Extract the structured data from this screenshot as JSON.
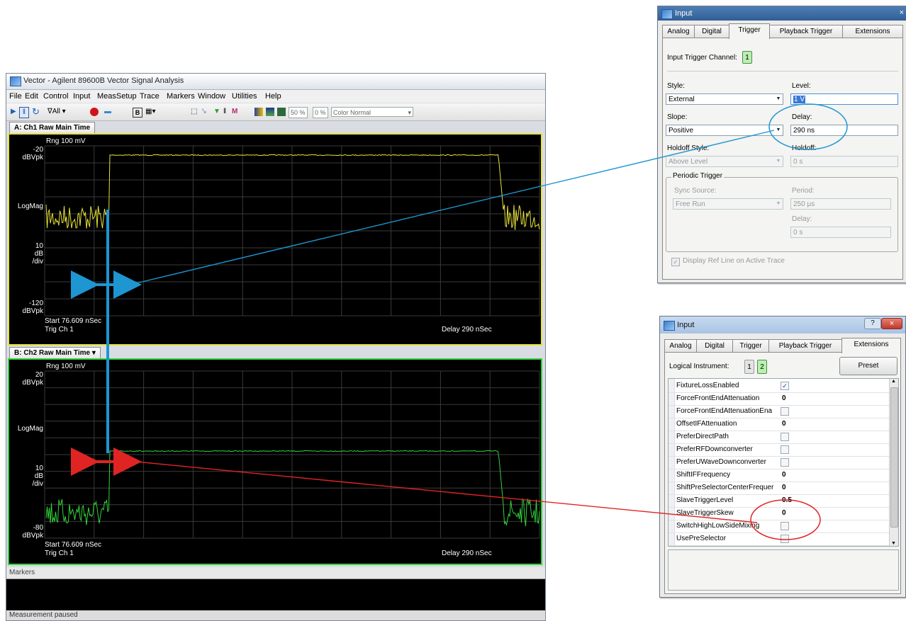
{
  "vsa": {
    "title": "Vector - Agilent 89600B Vector Signal Analysis",
    "menu": [
      "File",
      "Edit",
      "Control",
      "Input",
      "MeasSetup",
      "Trace",
      "Markers",
      "Window",
      "Utilities",
      "Help"
    ],
    "toolbar": {
      "all_label": "All",
      "zoom1": "50 %",
      "zoom2": "0 %",
      "color_mode": "Color Normal"
    },
    "trace_a": {
      "tab": "A: Ch1 Raw Main Time",
      "range": "Rng 100 mV",
      "top_value": "-20",
      "top_unit": "dBVpk",
      "logmag": "LogMag",
      "scale_num": "10",
      "scale_unit": "dB",
      "scale_div": "/div",
      "bottom_value": "-120",
      "bottom_unit": "dBVpk",
      "start": "Start 76.609 nSec",
      "trig": "Trig Ch 1",
      "delay": "Delay 290 nSec",
      "color": "#e8e23a"
    },
    "trace_b": {
      "tab": "B: Ch2 Raw Main Time",
      "range": "Rng 100 mV",
      "top_value": "20",
      "top_unit": "dBVpk",
      "logmag": "LogMag",
      "scale_num": "10",
      "scale_unit": "dB",
      "scale_div": "/div",
      "bottom_value": "-80",
      "bottom_unit": "dBVpk",
      "start": "Start 76.609 nSec",
      "trig": "Trig Ch 1",
      "delay": "Delay 290 nSec",
      "color": "#33d33a"
    },
    "markers_label": "Markers",
    "status": "Measurement paused"
  },
  "trigger_dialog": {
    "title": "Input",
    "tabs": [
      "Analog",
      "Digital",
      "Trigger",
      "Playback Trigger",
      "Extensions"
    ],
    "active_tab": "Trigger",
    "channel_label": "Input Trigger Channel:",
    "channel_value": "1",
    "style_label": "Style:",
    "style_value": "External",
    "level_label": "Level:",
    "level_value": "1 V",
    "slope_label": "Slope:",
    "slope_value": "Positive",
    "delay_label": "Delay:",
    "delay_value": "290 ns",
    "holdoff_style_label": "Holdoff Style:",
    "holdoff_style_value": "Above Level",
    "holdoff_label": "Holdoff:",
    "holdoff_value": "0 s",
    "periodic_label": "Periodic Trigger",
    "sync_label": "Sync Source:",
    "sync_value": "Free Run",
    "period_label": "Period:",
    "period_value": "250 µs",
    "pdelay_label": "Delay:",
    "pdelay_value": "0 s",
    "display_ref": "Display Ref Line on Active Trace"
  },
  "ext_dialog": {
    "title": "Input",
    "tabs": [
      "Analog",
      "Digital",
      "Trigger",
      "Playback Trigger",
      "Extensions"
    ],
    "active_tab": "Extensions",
    "logical_label": "Logical Instrument:",
    "instrument_buttons": [
      "1",
      "2"
    ],
    "preset": "Preset",
    "properties": [
      {
        "name": "FixtureLossEnabled",
        "type": "check",
        "checked": true
      },
      {
        "name": "ForceFrontEndAttenuation",
        "type": "value",
        "value": "0"
      },
      {
        "name": "ForceFrontEndAttenuationEna",
        "type": "check",
        "checked": false
      },
      {
        "name": "OffsetIFAttenuation",
        "type": "value",
        "value": "0"
      },
      {
        "name": "PreferDirectPath",
        "type": "check",
        "checked": false
      },
      {
        "name": "PreferRFDownconverter",
        "type": "check",
        "checked": false
      },
      {
        "name": "PreferUWaveDownconverter",
        "type": "check",
        "checked": false
      },
      {
        "name": "ShiftIFFrequency",
        "type": "value",
        "value": "0"
      },
      {
        "name": "ShiftPreSelectorCenterFrequer",
        "type": "value",
        "value": "0"
      },
      {
        "name": "SlaveTriggerLevel",
        "type": "value",
        "value": "0.5"
      },
      {
        "name": "SlaveTriggerSkew",
        "type": "value",
        "value": "0"
      },
      {
        "name": "SwitchHighLowSideMixing",
        "type": "check",
        "checked": false
      },
      {
        "name": "UsePreSelector",
        "type": "check",
        "checked": false
      }
    ]
  },
  "annotations": {
    "blue": "#1e96d2",
    "red": "#e02424"
  }
}
